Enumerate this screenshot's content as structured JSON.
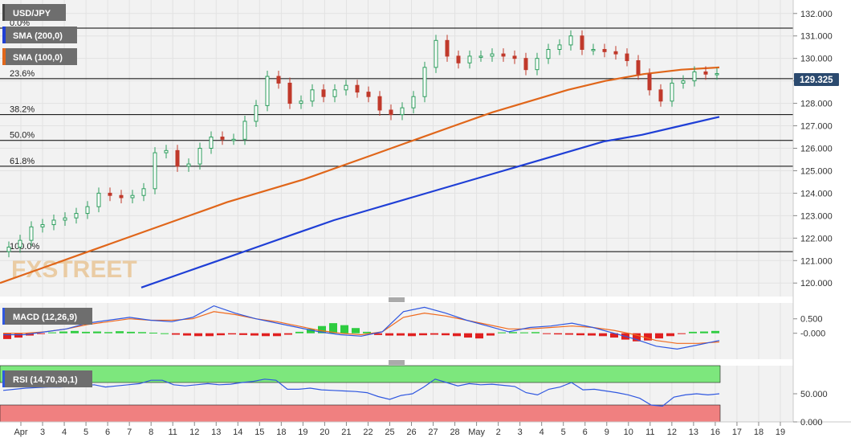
{
  "colors": {
    "background": "#f2f2f2",
    "panel_border": "#c8c8c8",
    "grid": "#e2e2e2",
    "up": "#2e9e5e",
    "down": "#c0392b",
    "sma100": "#e0661a",
    "sma200": "#1f3fd6",
    "fib_line": "#000000",
    "label_bg": "#6b6b6b",
    "price_tag_bg": "#2b4a6f",
    "macd_line": "#2f57e0",
    "macd_signal": "#f06a1e",
    "hist_pos": "#2ecc40",
    "hist_neg": "#e02020",
    "rsi_line": "#2f57e0",
    "rsi_overbought": "#7de77d",
    "rsi_oversold": "#f08080",
    "watermark": "#e8c08a"
  },
  "legend": {
    "symbol": "USD/JPY",
    "sma200": "SMA (200,0)",
    "sma100": "SMA (100,0)",
    "macd": "MACD (12,26,9)",
    "rsi": "RSI (14,70,30,1)"
  },
  "watermark": "FXSTREET",
  "last_price": "129.325",
  "x_labels": [
    "Apr",
    "3",
    "4",
    "5",
    "6",
    "7",
    "8",
    "11",
    "12",
    "13",
    "14",
    "15",
    "18",
    "19",
    "20",
    "21",
    "22",
    "25",
    "26",
    "27",
    "28",
    "May",
    "2",
    "3",
    "4",
    "5",
    "6",
    "9",
    "10",
    "11",
    "12",
    "13",
    "16",
    "17",
    "18",
    "19"
  ],
  "chart_data": [
    {
      "type": "candlestick",
      "panel": "price",
      "symbol": "USD/JPY",
      "ylim": [
        119.4,
        132.6
      ],
      "y_ticks": [
        "132.000",
        "131.000",
        "130.000",
        "129.000",
        "128.000",
        "127.000",
        "126.000",
        "125.000",
        "124.000",
        "123.000",
        "122.000",
        "121.000",
        "120.000"
      ],
      "series_close": [
        121.6,
        121.9,
        122.5,
        122.6,
        122.8,
        122.9,
        123.1,
        123.4,
        124.0,
        123.9,
        123.8,
        123.9,
        124.2,
        125.8,
        125.9,
        125.2,
        125.3,
        126.0,
        126.5,
        126.4,
        126.4,
        127.2,
        127.9,
        129.2,
        128.9,
        128.0,
        128.1,
        128.6,
        128.3,
        128.6,
        128.8,
        128.5,
        128.3,
        127.7,
        127.5,
        127.8,
        128.3,
        129.6,
        130.8,
        130.1,
        129.8,
        130.1,
        130.1,
        130.2,
        130.1,
        130.0,
        129.5,
        130.0,
        130.4,
        130.6,
        131.0,
        130.4,
        130.4,
        130.3,
        130.2,
        129.9,
        129.3,
        128.6,
        128.1,
        128.9,
        129.0,
        129.4,
        129.3,
        129.325
      ],
      "series": [
        {
          "name": "SMA (100,0)",
          "values": [
            120.0,
            120.6,
            121.2,
            121.8,
            122.4,
            123.0,
            123.6,
            124.1,
            124.6,
            125.2,
            125.8,
            126.4,
            127.0,
            127.6,
            128.1,
            128.6,
            129.0,
            129.3,
            129.5,
            129.6
          ]
        },
        {
          "name": "SMA (200,0)",
          "values": [
            119.8,
            120.4,
            121.0,
            121.6,
            122.2,
            122.8,
            123.3,
            123.8,
            124.3,
            124.8,
            125.3,
            125.8,
            126.3,
            126.6,
            127.0,
            127.4
          ]
        }
      ],
      "fibonacci": [
        {
          "label": "0.0%",
          "value": 131.35
        },
        {
          "label": "23.6%",
          "value": 129.1
        },
        {
          "label": "38.2%",
          "value": 127.5
        },
        {
          "label": "50.0%",
          "value": 126.35
        },
        {
          "label": "61.8%",
          "value": 125.2
        },
        {
          "label": "100.0%",
          "value": 121.4
        }
      ]
    },
    {
      "type": "line",
      "panel": "macd",
      "name": "MACD (12,26,9)",
      "ylim": [
        -0.9,
        1.05
      ],
      "y_ticks": [
        "0.500",
        "-0.000"
      ],
      "macd": [
        -0.05,
        -0.05,
        0.05,
        0.15,
        0.35,
        0.45,
        0.55,
        0.45,
        0.4,
        0.55,
        0.95,
        0.7,
        0.5,
        0.35,
        0.2,
        0.05,
        -0.05,
        -0.1,
        0.05,
        0.75,
        0.9,
        0.7,
        0.45,
        0.25,
        0.05,
        0.2,
        0.25,
        0.35,
        0.2,
        0.0,
        -0.2,
        -0.45,
        -0.55,
        -0.4,
        -0.25
      ],
      "signal": [
        0.0,
        0.0,
        0.05,
        0.15,
        0.3,
        0.4,
        0.5,
        0.45,
        0.45,
        0.5,
        0.75,
        0.65,
        0.5,
        0.4,
        0.25,
        0.1,
        0.0,
        -0.05,
        0.05,
        0.55,
        0.7,
        0.6,
        0.45,
        0.3,
        0.15,
        0.15,
        0.2,
        0.25,
        0.2,
        0.1,
        -0.05,
        -0.25,
        -0.35,
        -0.35,
        -0.3
      ],
      "histogram": [
        -0.2,
        -0.15,
        -0.08,
        -0.02,
        0.03,
        0.06,
        0.08,
        0.05,
        0.06,
        0.04,
        0.07,
        0.05,
        0.04,
        0.02,
        0.0,
        -0.05,
        -0.08,
        -0.1,
        -0.1,
        -0.07,
        -0.04,
        -0.06,
        -0.08,
        -0.1,
        -0.1,
        -0.05,
        0.05,
        0.15,
        0.25,
        0.35,
        0.28,
        0.18,
        0.05,
        -0.06,
        -0.08,
        -0.08,
        -0.1,
        -0.07,
        -0.05,
        -0.07,
        -0.1,
        -0.15,
        -0.18,
        -0.08,
        0.03,
        0.04,
        0.03,
        0.04,
        -0.02,
        -0.04,
        -0.05,
        -0.07,
        -0.08,
        -0.1,
        -0.15,
        -0.22,
        -0.28,
        -0.25,
        -0.18,
        -0.1,
        -0.02,
        0.05,
        0.06,
        0.08
      ]
    },
    {
      "type": "line",
      "panel": "rsi",
      "name": "RSI (14,70,30,1)",
      "ylim": [
        0,
        100
      ],
      "y_ticks": [
        "50.000",
        "0.000"
      ],
      "overbought": 70,
      "oversold": 30,
      "values": [
        56,
        58,
        60,
        61,
        62,
        62,
        63,
        64,
        66,
        62,
        64,
        66,
        68,
        74,
        74,
        66,
        64,
        66,
        68,
        66,
        67,
        70,
        72,
        76,
        74,
        58,
        58,
        60,
        57,
        56,
        55,
        54,
        52,
        45,
        40,
        47,
        50,
        62,
        76,
        70,
        64,
        68,
        66,
        67,
        65,
        63,
        52,
        48,
        58,
        62,
        70,
        57,
        58,
        55,
        52,
        48,
        42,
        30,
        28,
        44,
        48,
        50,
        48,
        50
      ]
    }
  ]
}
